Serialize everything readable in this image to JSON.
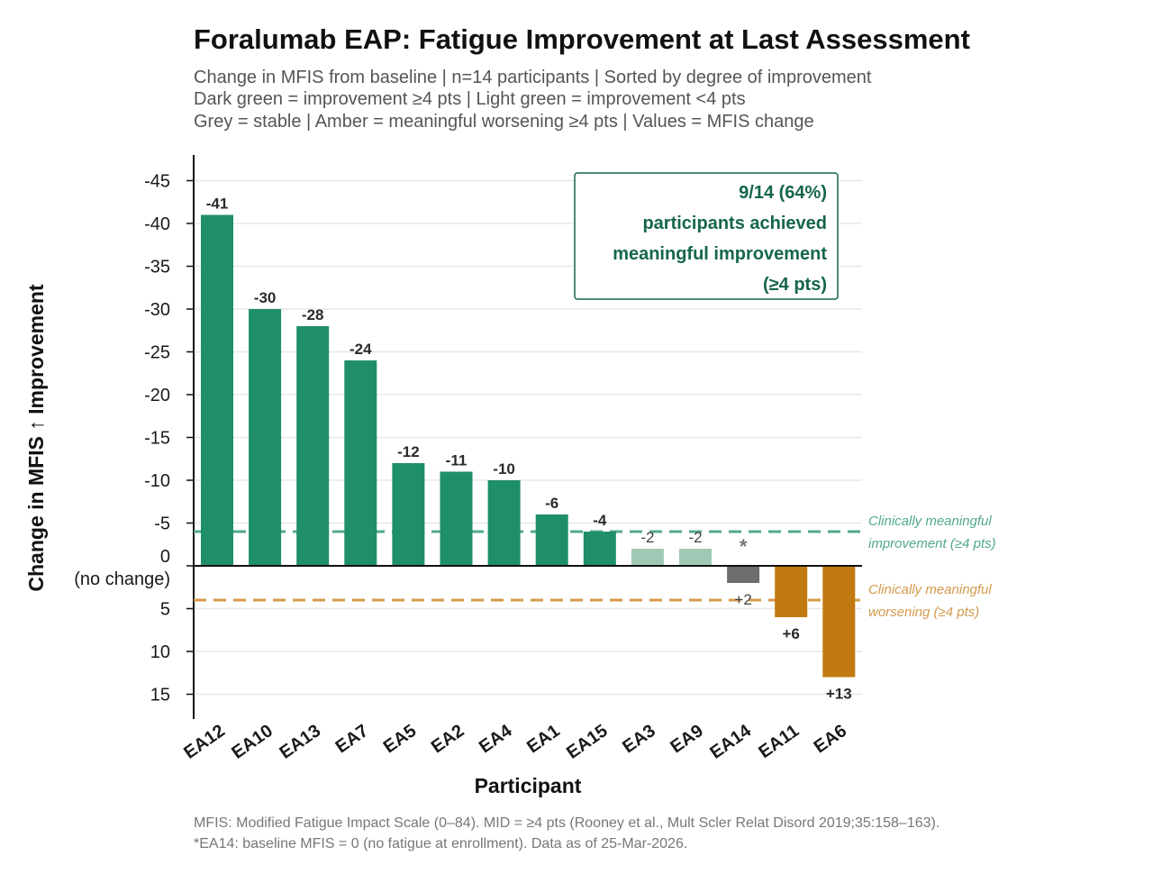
{
  "title": "Foralumab EAP: Fatigue Improvement at Last Assessment",
  "subtitle": [
    "Change in MFIS from baseline | n=14 participants | Sorted by degree of improvement",
    "Dark green = improvement ≥4 pts | Light green = improvement <4 pts",
    "Grey = stable | Amber = meaningful worsening ≥4 pts | Values = MFIS change"
  ],
  "footnotes": [
    "MFIS: Modified Fatigue Impact Scale (0–84). MID = ≥4 pts (Rooney et al., Mult Scler Relat Disord 2019;35:158–163).",
    "*EA14: baseline MFIS = 0 (no fatigue at enrollment). Data as of 25-Mar-2026."
  ],
  "annotation_box": [
    "9/14 (64%)",
    "participants achieved",
    "meaningful improvement",
    "(≥4 pts)"
  ],
  "reference_lines": {
    "improvement": {
      "value": -4,
      "label": [
        "Clinically meaningful",
        "improvement (≥4 pts)"
      ],
      "color": "#52a98a"
    },
    "worsening": {
      "value": 4,
      "label": [
        "Clinically meaningful",
        "worsening (≥4 pts)"
      ],
      "color": "#d49a4b"
    }
  },
  "colors": {
    "dark_green": "#1f8f67",
    "light_green": "#9fc9b5",
    "grey": "#6e6e6e",
    "amber": "#c07a10",
    "annotation_text": "#15664a"
  },
  "chart_data": {
    "type": "bar",
    "title": "Foralumab EAP: Fatigue Improvement at Last Assessment",
    "xlabel": "Participant",
    "ylabel": "Change in MFIS ↑ Improvement",
    "y_inverted": true,
    "ylim": [
      -48,
      18
    ],
    "yticks": [
      -45,
      -40,
      -35,
      -30,
      -25,
      -20,
      -15,
      -10,
      -5,
      0,
      5,
      10,
      15
    ],
    "ytick_labels": [
      "-45",
      "-40",
      "-35",
      "-30",
      "-25",
      "-20",
      "-15",
      "-10",
      "-5",
      "0",
      "5",
      "10",
      "15"
    ],
    "zero_sublabel": "(no change)",
    "grid": "horizontal",
    "categories": [
      "EA12",
      "EA10",
      "EA13",
      "EA7",
      "EA5",
      "EA2",
      "EA4",
      "EA1",
      "EA15",
      "EA3",
      "EA9",
      "EA14",
      "EA11",
      "EA6"
    ],
    "values": [
      -41,
      -30,
      -28,
      -24,
      -12,
      -11,
      -10,
      -6,
      -4,
      -2,
      -2,
      2,
      6,
      13
    ],
    "labels": [
      "-41",
      "-30",
      "-28",
      "-24",
      "-12",
      "-11",
      "-10",
      "-6",
      "-4",
      "-2",
      "-2",
      "+2",
      "+6",
      "+13"
    ],
    "classes": [
      "dark",
      "dark",
      "dark",
      "dark",
      "dark",
      "dark",
      "dark",
      "dark",
      "dark",
      "light",
      "light",
      "grey",
      "amber",
      "amber"
    ],
    "markers": {
      "EA14": "*"
    }
  }
}
